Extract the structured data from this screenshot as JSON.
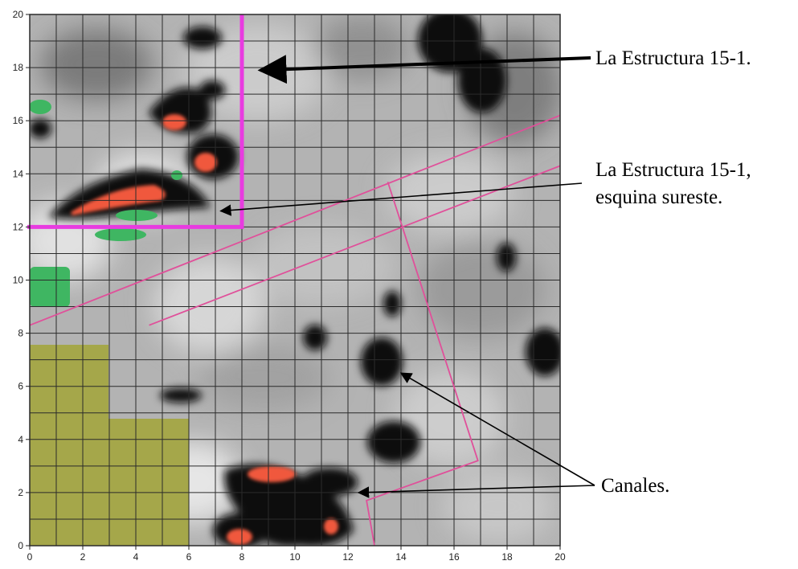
{
  "plot": {
    "x_ticks": [
      "0",
      "2",
      "4",
      "6",
      "8",
      "10",
      "12",
      "14",
      "16",
      "18",
      "20"
    ],
    "y_ticks": [
      "0",
      "2",
      "4",
      "6",
      "8",
      "10",
      "12",
      "14",
      "16",
      "18",
      "20"
    ],
    "xlim": [
      0,
      20
    ],
    "ylim": [
      0,
      20
    ],
    "grid_spacing": 1,
    "structure_corner": {
      "x": 8,
      "y": 12,
      "top": 20
    },
    "pink_lines": [
      {
        "name": "upper-diagonal-line",
        "points": [
          [
            0,
            8.3
          ],
          [
            20,
            16.2
          ]
        ]
      },
      {
        "name": "lower-diagonal-line",
        "points": [
          [
            4.5,
            8.3
          ],
          [
            20,
            14.3
          ]
        ]
      },
      {
        "name": "excavation-outline",
        "points": [
          [
            13.5,
            13.7
          ],
          [
            16.9,
            3.2
          ],
          [
            12.7,
            1.7
          ],
          [
            13.0,
            0
          ]
        ]
      }
    ],
    "arrow_targets": {
      "structure": [
        8.7,
        17.9
      ],
      "southeast_corner": [
        7.2,
        12.6
      ],
      "channel_upper": [
        14.0,
        6.5
      ],
      "channel_lower": [
        12.4,
        2.0
      ]
    },
    "colors": {
      "structure_line": "#e83be0",
      "pink_line": "#e0509a",
      "grid": "#2b2b2b",
      "olive_block": "#a5a74a",
      "high_anomaly": "#f0583c",
      "low_anomaly": "#3fb662"
    }
  },
  "annotations": {
    "structure_label": "La Estructura 15-1.",
    "corner_label_line1": "La Estructura 15-1,",
    "corner_label_line2": "esquina sureste.",
    "channels_label": "Canales."
  }
}
